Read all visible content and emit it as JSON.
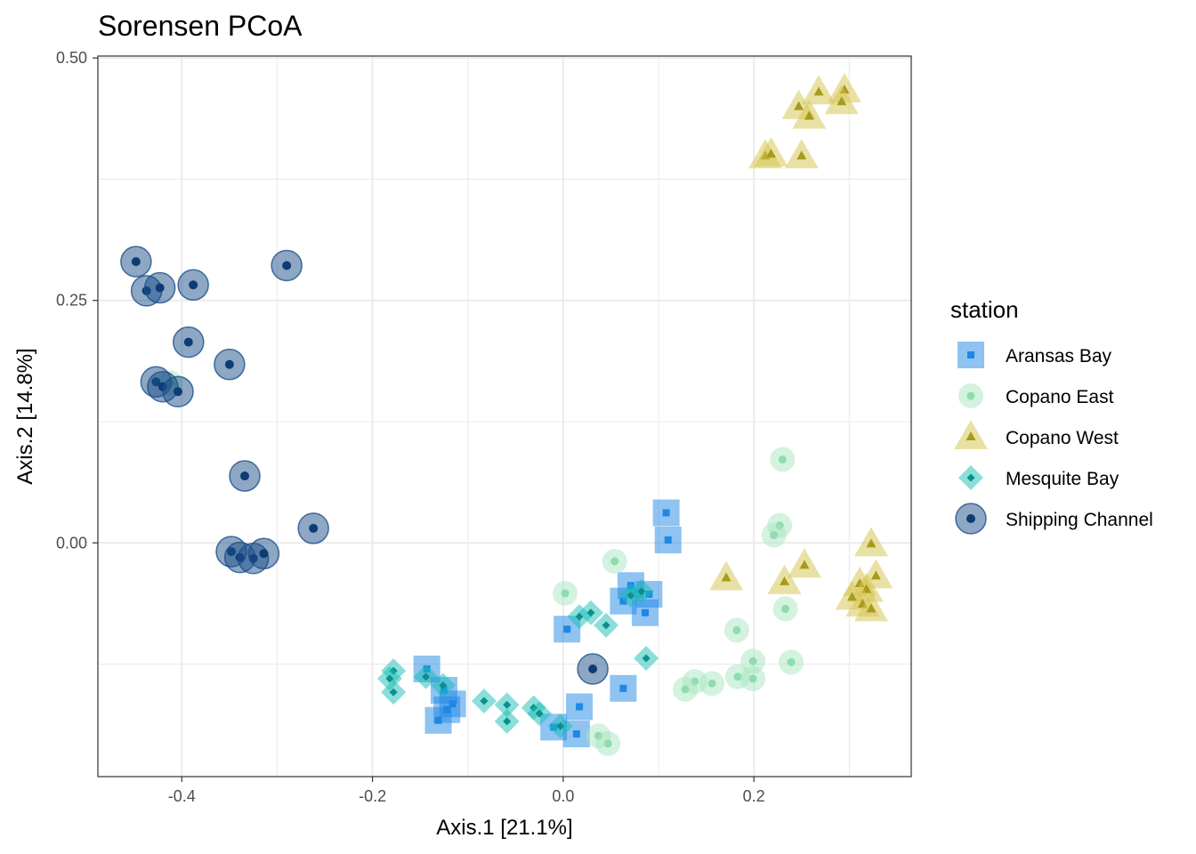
{
  "chart_data": {
    "type": "scatter",
    "title": "Sorensen PCoA",
    "xlabel": "Axis.1   [21.1%]",
    "ylabel": "Axis.2   [14.8%]",
    "xlim": [
      -0.488,
      0.365
    ],
    "ylim": [
      -0.241,
      0.502
    ],
    "x_ticks": [
      -0.4,
      -0.2,
      0.0,
      0.2
    ],
    "x_tick_labels": [
      "-0.4",
      "-0.2",
      "0.0",
      "0.2"
    ],
    "y_ticks": [
      0.0,
      0.25,
      0.5
    ],
    "y_tick_labels": [
      "0.00",
      "0.25",
      "0.50"
    ],
    "grid": true,
    "legend": {
      "title": "station",
      "position": "right"
    },
    "series": [
      {
        "name": "Aransas Bay",
        "shape": "square",
        "color": "#1E88E5",
        "points": [
          [
            0.108,
            0.031
          ],
          [
            0.11,
            0.003
          ],
          [
            0.071,
            -0.044
          ],
          [
            0.063,
            -0.06
          ],
          [
            0.09,
            -0.053
          ],
          [
            0.086,
            -0.072
          ],
          [
            0.004,
            -0.089
          ],
          [
            -0.143,
            -0.13
          ],
          [
            -0.125,
            -0.152
          ],
          [
            -0.116,
            -0.166
          ],
          [
            -0.122,
            -0.172
          ],
          [
            -0.131,
            -0.183
          ],
          [
            0.017,
            -0.169
          ],
          [
            0.014,
            -0.197
          ],
          [
            0.063,
            -0.15
          ],
          [
            -0.01,
            -0.19
          ]
        ]
      },
      {
        "name": "Copano East",
        "shape": "circle",
        "color": "#A8E6C0",
        "points": [
          [
            0.23,
            0.086
          ],
          [
            0.227,
            0.018
          ],
          [
            0.221,
            0.008
          ],
          [
            0.054,
            -0.019
          ],
          [
            0.002,
            -0.052
          ],
          [
            0.233,
            -0.068
          ],
          [
            0.182,
            -0.09
          ],
          [
            0.239,
            -0.123
          ],
          [
            0.199,
            -0.122
          ],
          [
            0.199,
            -0.14
          ],
          [
            0.183,
            -0.138
          ],
          [
            0.156,
            -0.145
          ],
          [
            0.138,
            -0.143
          ],
          [
            0.128,
            -0.151
          ],
          [
            0.037,
            -0.199
          ],
          [
            0.047,
            -0.207
          ],
          [
            -0.412,
            0.165
          ]
        ]
      },
      {
        "name": "Copano West",
        "shape": "triangle",
        "color": "#D4C44A",
        "points": [
          [
            0.268,
            0.465
          ],
          [
            0.295,
            0.467
          ],
          [
            0.292,
            0.455
          ],
          [
            0.247,
            0.45
          ],
          [
            0.258,
            0.44
          ],
          [
            0.212,
            0.399
          ],
          [
            0.218,
            0.401
          ],
          [
            0.25,
            0.399
          ],
          [
            0.323,
            -0.001
          ],
          [
            0.253,
            -0.023
          ],
          [
            0.232,
            -0.04
          ],
          [
            0.171,
            -0.036
          ],
          [
            0.328,
            -0.034
          ],
          [
            0.311,
            -0.042
          ],
          [
            0.318,
            -0.048
          ],
          [
            0.303,
            -0.056
          ],
          [
            0.314,
            -0.063
          ],
          [
            0.323,
            -0.068
          ]
        ]
      },
      {
        "name": "Mesquite Bay",
        "shape": "diamond",
        "color": "#17BDB5",
        "points": [
          [
            -0.178,
            -0.132
          ],
          [
            -0.182,
            -0.14
          ],
          [
            -0.178,
            -0.154
          ],
          [
            -0.144,
            -0.138
          ],
          [
            -0.126,
            -0.147
          ],
          [
            -0.083,
            -0.163
          ],
          [
            -0.059,
            -0.167
          ],
          [
            -0.059,
            -0.184
          ],
          [
            -0.031,
            -0.17
          ],
          [
            -0.025,
            -0.176
          ],
          [
            -0.003,
            -0.189
          ],
          [
            0.017,
            -0.076
          ],
          [
            0.029,
            -0.072
          ],
          [
            0.045,
            -0.085
          ],
          [
            0.071,
            -0.054
          ],
          [
            0.082,
            -0.05
          ],
          [
            0.087,
            -0.119
          ]
        ]
      },
      {
        "name": "Shipping Channel",
        "shape": "circle",
        "color": "#1B4F8A",
        "points": [
          [
            -0.448,
            0.29
          ],
          [
            -0.437,
            0.26
          ],
          [
            -0.423,
            0.263
          ],
          [
            -0.388,
            0.266
          ],
          [
            -0.29,
            0.286
          ],
          [
            -0.393,
            0.207
          ],
          [
            -0.35,
            0.184
          ],
          [
            -0.427,
            0.166
          ],
          [
            -0.42,
            0.161
          ],
          [
            -0.404,
            0.156
          ],
          [
            -0.334,
            0.069
          ],
          [
            -0.262,
            0.015
          ],
          [
            -0.348,
            -0.009
          ],
          [
            -0.339,
            -0.015
          ],
          [
            -0.325,
            -0.016
          ],
          [
            -0.314,
            -0.011
          ],
          [
            0.031,
            -0.13
          ]
        ]
      }
    ]
  }
}
